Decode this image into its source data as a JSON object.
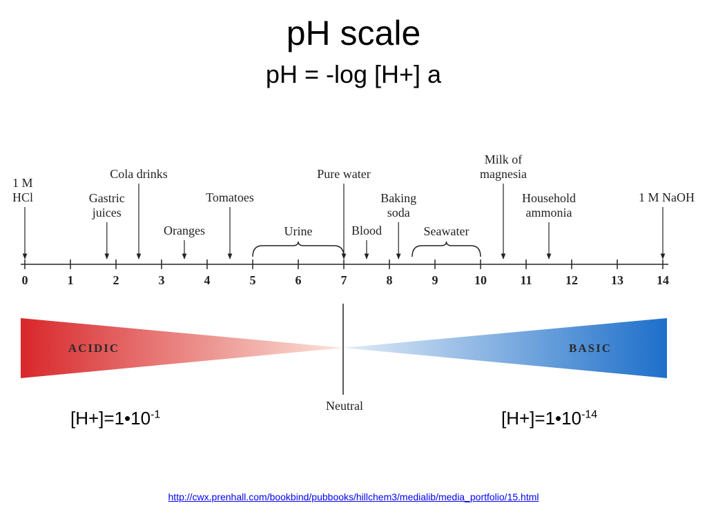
{
  "slide": {
    "title": "pH scale",
    "subtitle": "pH = -log [H+] a",
    "link": "http://cwx.prenhall.com/bookbind/pubbooks/hillchem3/medialib/media_portfolio/15.html"
  },
  "scale": {
    "min": 0,
    "max": 14,
    "ticks": [
      "0",
      "1",
      "2",
      "3",
      "4",
      "5",
      "6",
      "7",
      "8",
      "9",
      "10",
      "11",
      "12",
      "13",
      "14"
    ]
  },
  "substances": [
    {
      "lines": [
        "1 M",
        "HCl"
      ],
      "ph": 0,
      "level": "high",
      "anchor": "start"
    },
    {
      "lines": [
        "Gastric",
        "juices"
      ],
      "ph": 1.8,
      "level": "mid"
    },
    {
      "lines": [
        "Cola drinks"
      ],
      "ph": 2.5,
      "level": "top"
    },
    {
      "lines": [
        "Oranges"
      ],
      "ph": 3.5,
      "level": "low"
    },
    {
      "lines": [
        "Tomatoes"
      ],
      "ph": 4.5,
      "level": "high"
    },
    {
      "lines": [
        "Pure water"
      ],
      "ph": 7.0,
      "level": "top"
    },
    {
      "lines": [
        "Blood"
      ],
      "ph": 7.5,
      "level": "low"
    },
    {
      "lines": [
        "Baking",
        "soda"
      ],
      "ph": 8.2,
      "level": "mid"
    },
    {
      "lines": [
        "Milk of",
        "magnesia"
      ],
      "ph": 10.5,
      "level": "top"
    },
    {
      "lines": [
        "Household",
        "ammonia"
      ],
      "ph": 11.5,
      "level": "mid"
    },
    {
      "lines": [
        "1 M NaOH"
      ],
      "ph": 14,
      "level": "high",
      "anchor": "end"
    }
  ],
  "ranges": [
    {
      "label": "Urine",
      "from": 5,
      "to": 7
    },
    {
      "label": "Seawater",
      "from": 8.5,
      "to": 10
    }
  ],
  "gradient": {
    "acidic_label": "ACIDIC",
    "basic_label": "BASIC",
    "neutral_label": "Neutral",
    "acidic_color": "#d8272b",
    "basic_color": "#1d6fca"
  },
  "concentrations": {
    "acid": {
      "base": "[H+]=1•10",
      "exponent": "-1"
    },
    "base": {
      "base": "[H+]=1•10",
      "exponent": "-14"
    }
  }
}
